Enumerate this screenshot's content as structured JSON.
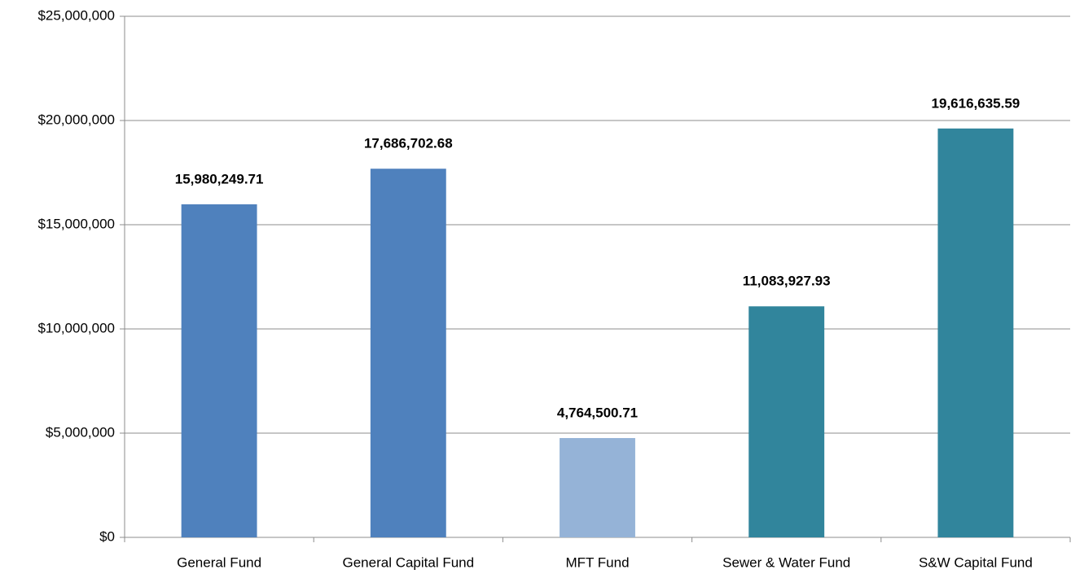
{
  "chart_data": {
    "type": "bar",
    "categories": [
      "General Fund",
      "General Capital Fund",
      "MFT Fund",
      "Sewer & Water Fund",
      "S&W Capital Fund"
    ],
    "values": [
      15980249.71,
      17686702.68,
      4764500.71,
      11083927.93,
      19616635.59
    ],
    "value_labels": [
      "15,980,249.71",
      "17,686,702.68",
      "4,764,500.71",
      "11,083,927.93",
      "19,616,635.59"
    ],
    "colors": [
      "#4f81bd",
      "#4f81bd",
      "#95b3d7",
      "#31859c",
      "#31859c"
    ],
    "ylim": [
      0,
      25000000
    ],
    "yticks": [
      {
        "value": 0,
        "label": "$0"
      },
      {
        "value": 5000000,
        "label": "$5,000,000"
      },
      {
        "value": 10000000,
        "label": "$10,000,000"
      },
      {
        "value": 15000000,
        "label": "$15,000,000"
      },
      {
        "value": 20000000,
        "label": "$20,000,000"
      },
      {
        "value": 25000000,
        "label": "$25,000,000"
      }
    ],
    "grid": true
  }
}
